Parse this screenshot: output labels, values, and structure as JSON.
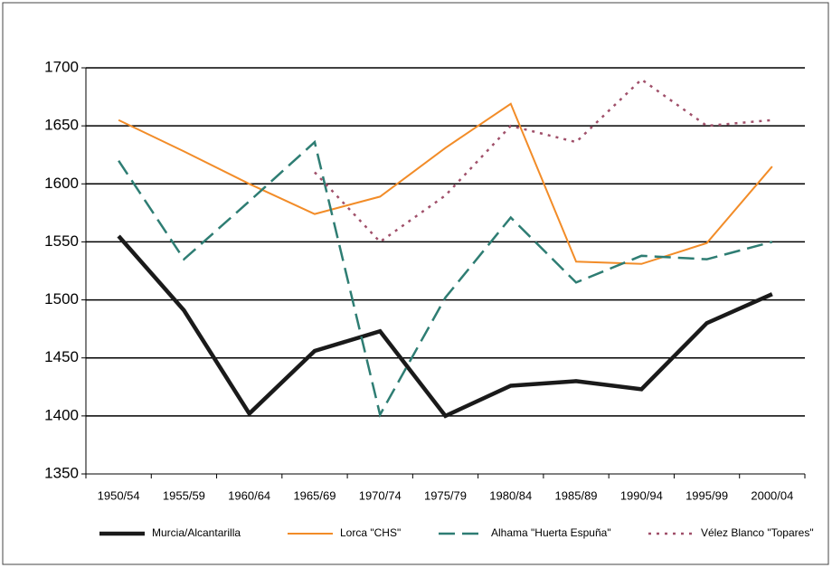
{
  "chart_data": {
    "type": "line",
    "categories": [
      "1950/54",
      "1955/59",
      "1960/64",
      "1965/69",
      "1970/74",
      "1975/79",
      "1980/84",
      "1985/89",
      "1990/94",
      "1995/99",
      "2000/04"
    ],
    "series": [
      {
        "name": "Murcia/Alcantarilla",
        "color": "#1a1a1a",
        "values": [
          1555,
          1491,
          1402,
          1456,
          1473,
          1400,
          1426,
          1430,
          1423,
          1480,
          1505
        ]
      },
      {
        "name": "Lorca \"CHS\"",
        "color": "#f28c28",
        "values": [
          1655,
          1628,
          1600,
          1574,
          1589,
          1631,
          1669,
          1533,
          1531,
          1549,
          1615
        ]
      },
      {
        "name": "Alhama \"Huerta Espuña\"",
        "color": "#2e7d73",
        "values": [
          1620,
          1535,
          1585,
          1636,
          1401,
          1502,
          1571,
          1515,
          1538,
          1535,
          1550
        ]
      },
      {
        "name": "Vélez Blanco \"Topares\"",
        "color": "#a0506a",
        "values": [
          null,
          null,
          null,
          1610,
          1550,
          1590,
          1650,
          1636,
          1690,
          1650,
          1655
        ]
      }
    ],
    "ylim": [
      1350,
      1700
    ],
    "yticks": [
      1350,
      1400,
      1450,
      1500,
      1550,
      1600,
      1650,
      1700
    ],
    "grid": true
  }
}
